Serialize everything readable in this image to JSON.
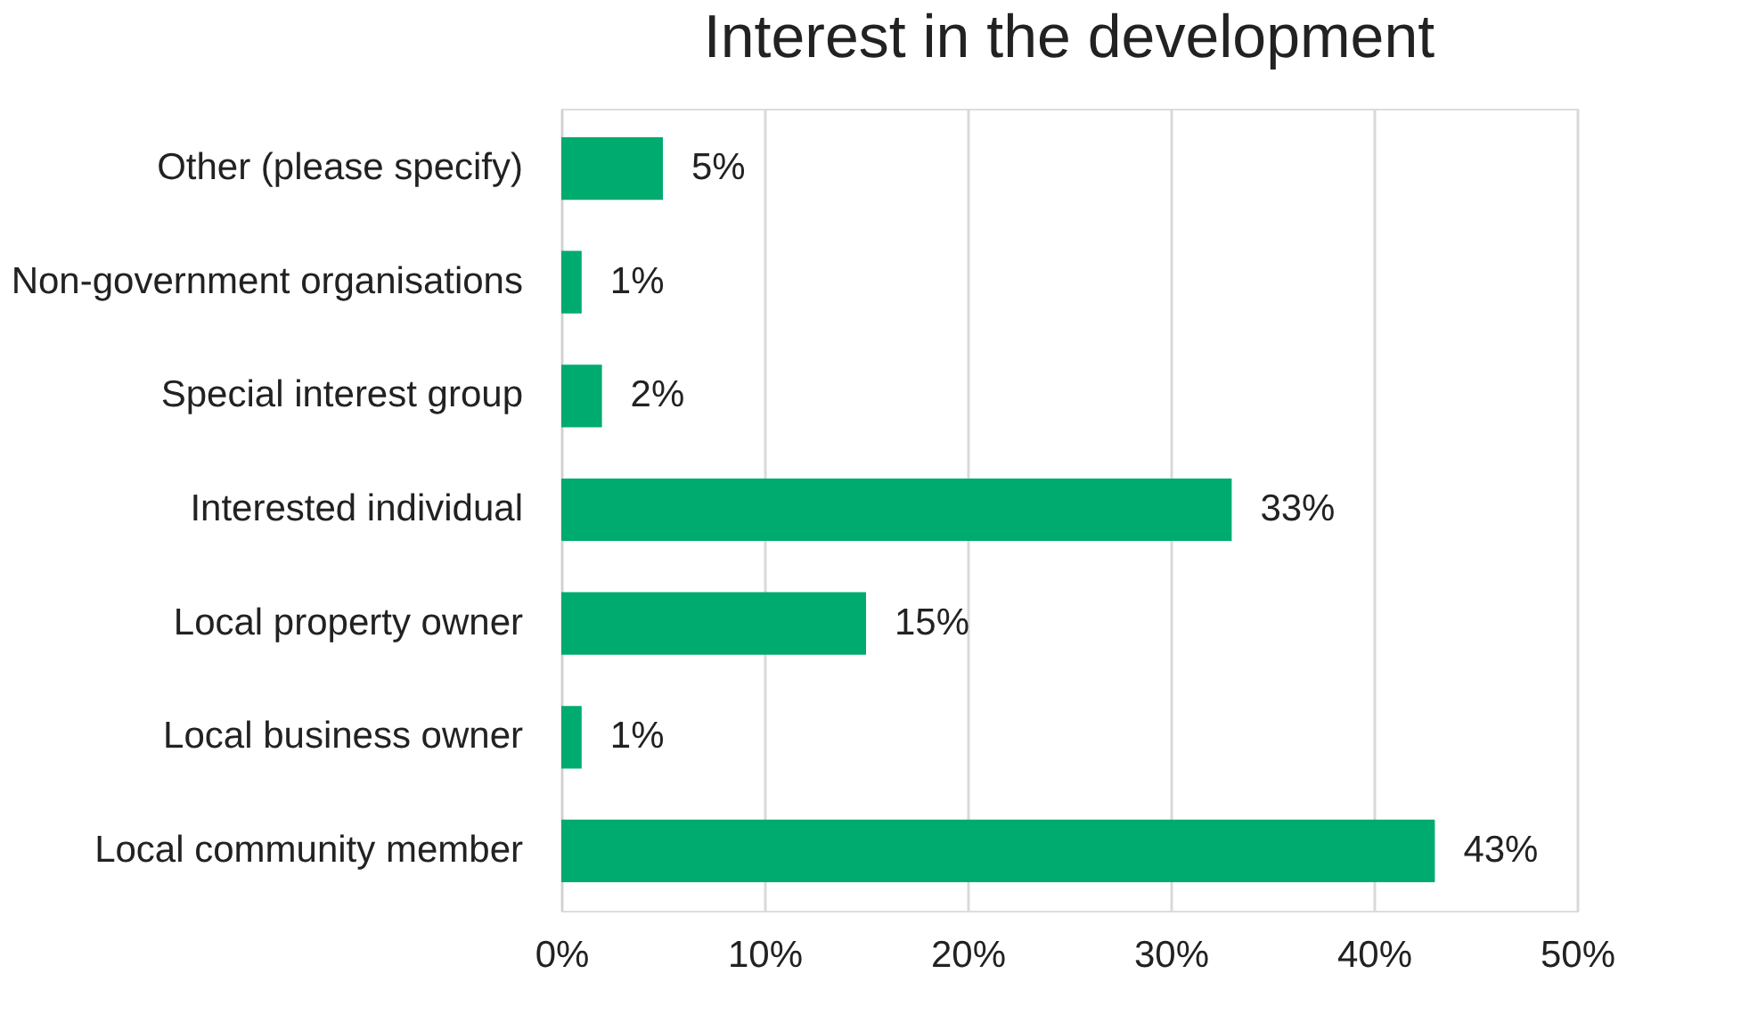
{
  "chart_data": {
    "type": "bar",
    "orientation": "horizontal",
    "title": "Interest in the development",
    "categories": [
      "Other (please specify)",
      "Non-government organisations",
      "Special interest group",
      "Interested individual",
      "Local property owner",
      "Local business owner",
      "Local community member"
    ],
    "values": [
      5,
      1,
      2,
      33,
      15,
      1,
      43
    ],
    "value_labels": [
      "5%",
      "1%",
      "2%",
      "33%",
      "15%",
      "1%",
      "43%"
    ],
    "color": "#00ab6f",
    "xlim": [
      0,
      50
    ],
    "xticks": [
      {
        "value": 0,
        "label": "0%"
      },
      {
        "value": 10,
        "label": "10%"
      },
      {
        "value": 20,
        "label": "20%"
      },
      {
        "value": 30,
        "label": "30%"
      },
      {
        "value": 40,
        "label": "40%"
      },
      {
        "value": 50,
        "label": "50%"
      }
    ],
    "grid": "x"
  }
}
